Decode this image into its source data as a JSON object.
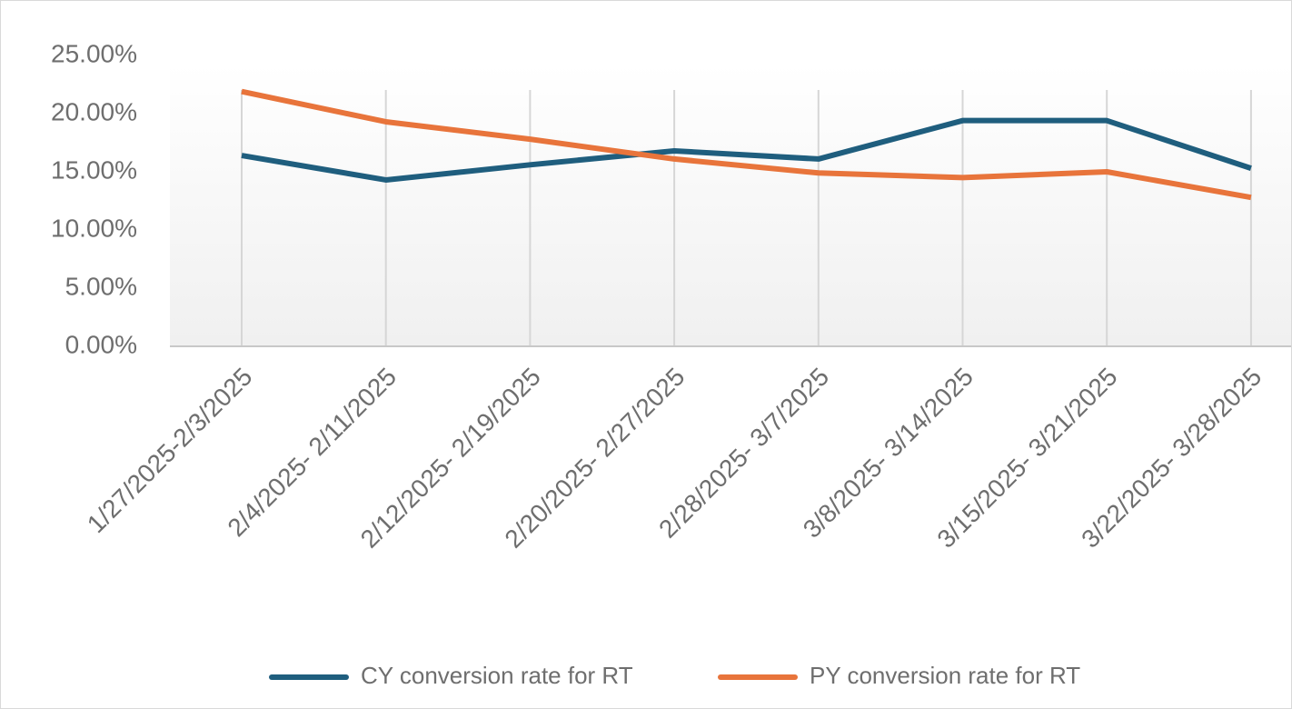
{
  "chart_data": {
    "type": "line",
    "title": "",
    "xlabel": "",
    "ylabel": "",
    "categories": [
      "1/27/2025-2/3/2025",
      "2/4/2025- 2/11/2025",
      "2/12/2025- 2/19/2025",
      "2/20/2025- 2/27/2025",
      "2/28/2025- 3/7/2025",
      "3/8/2025- 3/14/2025",
      "3/15/2025- 3/21/2025",
      "3/22/2025- 3/28/2025"
    ],
    "y_ticks": [
      "0.00%",
      "5.00%",
      "10.00%",
      "15.00%",
      "20.00%",
      "25.00%"
    ],
    "ylim": [
      0,
      25
    ],
    "y_unit": "%",
    "grid": "vertical",
    "legend_position": "bottom",
    "series": [
      {
        "name": "CY conversion rate for RT",
        "color": "#1f5e7e",
        "values": [
          16.4,
          14.3,
          15.6,
          16.8,
          16.1,
          19.4,
          19.4,
          15.3
        ]
      },
      {
        "name": "PY conversion rate for RT",
        "color": "#e8743b",
        "values": [
          21.9,
          19.3,
          17.8,
          16.1,
          14.9,
          14.5,
          15.0,
          12.8
        ]
      }
    ]
  }
}
